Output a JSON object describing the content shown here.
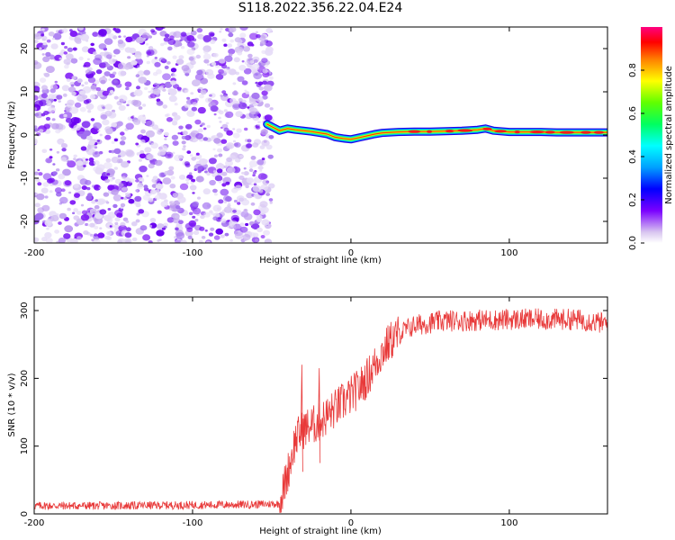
{
  "title": "S118.2022.356.22.04.E24",
  "chart_data": [
    {
      "type": "heatmap",
      "xlabel": "Height of straight line (km)",
      "ylabel": "Frequency (Hz)",
      "xlim": [
        -200,
        162
      ],
      "ylim": [
        -25,
        25
      ],
      "xticks": [
        -200,
        -100,
        0,
        100
      ],
      "yticks": [
        -20,
        -10,
        0,
        10,
        20
      ],
      "colorbar": {
        "label": "Normalized spectral amplitude",
        "range": [
          0,
          1
        ],
        "ticks": [
          "0.0",
          "0.2",
          "0.4",
          "0.6",
          "0.8"
        ]
      },
      "noise_region_x": [
        -200,
        -53
      ],
      "signal_line": {
        "x": [
          -53,
          -45,
          -40,
          -35,
          -30,
          -25,
          -20,
          -15,
          -10,
          -5,
          0,
          5,
          10,
          15,
          20,
          30,
          40,
          50,
          60,
          70,
          80,
          85,
          90,
          100,
          110,
          120,
          130,
          140,
          150,
          162
        ],
        "frequency": [
          2.5,
          1.0,
          1.5,
          1.2,
          1.0,
          0.8,
          0.5,
          0.2,
          -0.5,
          -0.8,
          -1.0,
          -0.6,
          -0.2,
          0.2,
          0.5,
          0.7,
          0.8,
          0.8,
          0.9,
          1.0,
          1.2,
          1.5,
          1.0,
          0.7,
          0.7,
          0.7,
          0.6,
          0.6,
          0.6,
          0.6
        ]
      }
    },
    {
      "type": "line",
      "xlabel": "Height of straight line (km)",
      "ylabel": "SNR (10 * v/v)",
      "xlim": [
        -200,
        162
      ],
      "ylim": [
        0,
        320
      ],
      "xticks": [
        -200,
        -100,
        0,
        100
      ],
      "yticks": [
        0,
        100,
        200,
        300
      ],
      "series": [
        {
          "color": "#e83a3a",
          "envelope_x": [
            -200,
            -150,
            -100,
            -60,
            -45,
            -40,
            -35,
            -30,
            -25,
            -20,
            -15,
            -10,
            -5,
            0,
            5,
            10,
            15,
            20,
            25,
            30,
            35,
            40,
            50,
            60,
            70,
            80,
            90,
            100,
            110,
            120,
            130,
            140,
            150,
            162
          ],
          "envelope_y": [
            12,
            12,
            13,
            14,
            15,
            60,
            110,
            125,
            130,
            135,
            145,
            155,
            165,
            175,
            185,
            200,
            220,
            240,
            255,
            265,
            272,
            278,
            282,
            285,
            285,
            286,
            286,
            287,
            287,
            287,
            287,
            287,
            285,
            280
          ],
          "noise_amplitude": 10
        }
      ],
      "annotations": [
        {
          "x": -31,
          "y": 220,
          "label": ""
        },
        {
          "x": -20,
          "y": 215,
          "label": ""
        }
      ]
    }
  ]
}
